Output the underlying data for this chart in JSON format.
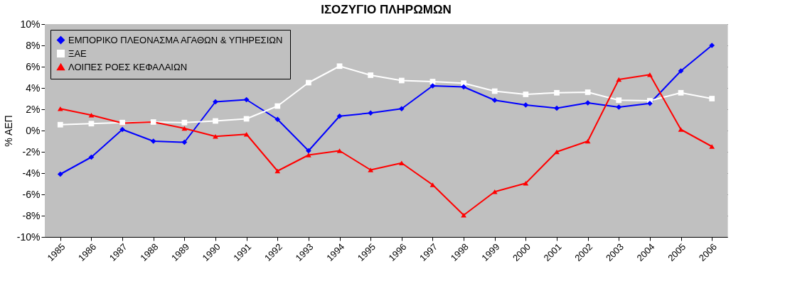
{
  "chart_data": {
    "type": "line",
    "title": "ΙΣΟΖΥΓΙΟ ΠΛΗΡΩΜΩΝ",
    "ylabel": "% ΑΕΠ",
    "categories": [
      "1985",
      "1986",
      "1987",
      "1988",
      "1989",
      "1990",
      "1991",
      "1992",
      "1993",
      "1994",
      "1995",
      "1996",
      "1997",
      "1998",
      "1999",
      "2000",
      "2001",
      "2002",
      "2003",
      "2004",
      "2005",
      "2006"
    ],
    "series": [
      {
        "name": "ΕΜΠΟΡΙΚΟ ΠΛΕΟΝΑΣΜΑ ΑΓΑΘΩΝ & ΥΠΗΡΕΣΙΩΝ",
        "color": "#0000ff",
        "marker": "diamond",
        "values": [
          -4.1,
          -2.5,
          0.1,
          -1.0,
          -1.1,
          2.7,
          2.9,
          1.05,
          -1.9,
          1.35,
          1.65,
          2.05,
          4.2,
          4.1,
          2.85,
          2.4,
          2.1,
          2.6,
          2.2,
          2.55,
          5.6,
          8.0
        ]
      },
      {
        "name": "ΞΑΕ",
        "color": "#ffffff",
        "marker": "square",
        "values": [
          0.55,
          0.65,
          0.75,
          0.8,
          0.75,
          0.9,
          1.1,
          2.3,
          4.5,
          6.05,
          5.2,
          4.7,
          4.6,
          4.45,
          3.7,
          3.4,
          3.55,
          3.6,
          2.85,
          2.8,
          3.55,
          3.0
        ]
      },
      {
        "name": "ΛΟΙΠΕΣ ΡΟΕΣ ΚΕΦΑΛΑΙΩΝ",
        "color": "#ff0000",
        "marker": "triangle",
        "values": [
          2.05,
          1.45,
          0.7,
          0.8,
          0.2,
          -0.55,
          -0.35,
          -3.8,
          -2.3,
          -1.9,
          -3.7,
          -3.05,
          -5.1,
          -7.95,
          -5.75,
          -4.95,
          -2.0,
          -1.0,
          4.8,
          5.25,
          0.1,
          -1.5
        ]
      }
    ],
    "ylim": [
      -10,
      10
    ],
    "yticks": [
      {
        "value": -10,
        "label": "-10%"
      },
      {
        "value": -8,
        "label": "-8%"
      },
      {
        "value": -6,
        "label": "-6%"
      },
      {
        "value": -4,
        "label": "-4%"
      },
      {
        "value": -2,
        "label": "-2%"
      },
      {
        "value": 0,
        "label": "0%"
      },
      {
        "value": 2,
        "label": "2%"
      },
      {
        "value": 4,
        "label": "4%"
      },
      {
        "value": 6,
        "label": "6%"
      },
      {
        "value": 8,
        "label": "8%"
      },
      {
        "value": 10,
        "label": "10%"
      }
    ],
    "grid": "y",
    "legend": "top left",
    "line_style": "solid"
  }
}
